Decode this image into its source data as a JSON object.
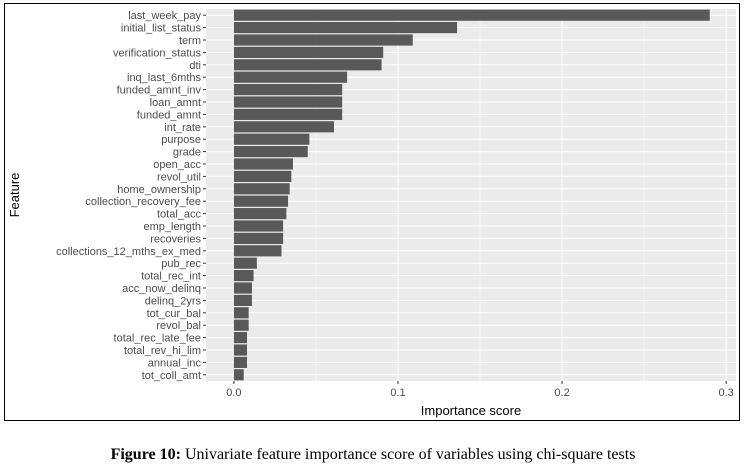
{
  "caption": {
    "label": "Figure 10:",
    "text": "Univariate feature importance score of variables using chi-square tests"
  },
  "colors": {
    "panel": "#ebebeb",
    "grid": "#ffffff",
    "bar": "#595959"
  },
  "chart_data": {
    "type": "bar",
    "orientation": "horizontal",
    "xlabel": "Importance score",
    "ylabel": "Feature",
    "xlim": [
      -0.017,
      0.306
    ],
    "xticks": [
      0.0,
      0.1,
      0.2,
      0.3
    ],
    "xtick_labels": [
      "0.0",
      "0.1",
      "0.2",
      "0.3"
    ],
    "grid": true,
    "categories": [
      "last_week_pay",
      "initial_list_status",
      "term",
      "verification_status",
      "dti",
      "inq_last_6mths",
      "funded_amnt_inv",
      "loan_amnt",
      "funded_amnt",
      "int_rate",
      "purpose",
      "grade",
      "open_acc",
      "revol_util",
      "home_ownership",
      "collection_recovery_fee",
      "total_acc",
      "emp_length",
      "recoveries",
      "collections_12_mths_ex_med",
      "pub_rec",
      "total_rec_int",
      "acc_now_delinq",
      "delinq_2yrs",
      "tot_cur_bal",
      "revol_bal",
      "total_rec_late_fee",
      "total_rev_hi_lim",
      "annual_inc",
      "tot_coll_amt"
    ],
    "values": [
      0.29,
      0.136,
      0.109,
      0.091,
      0.09,
      0.069,
      0.066,
      0.066,
      0.066,
      0.061,
      0.046,
      0.045,
      0.036,
      0.035,
      0.034,
      0.033,
      0.032,
      0.03,
      0.03,
      0.029,
      0.014,
      0.012,
      0.011,
      0.011,
      0.009,
      0.009,
      0.008,
      0.008,
      0.008,
      0.006
    ]
  }
}
